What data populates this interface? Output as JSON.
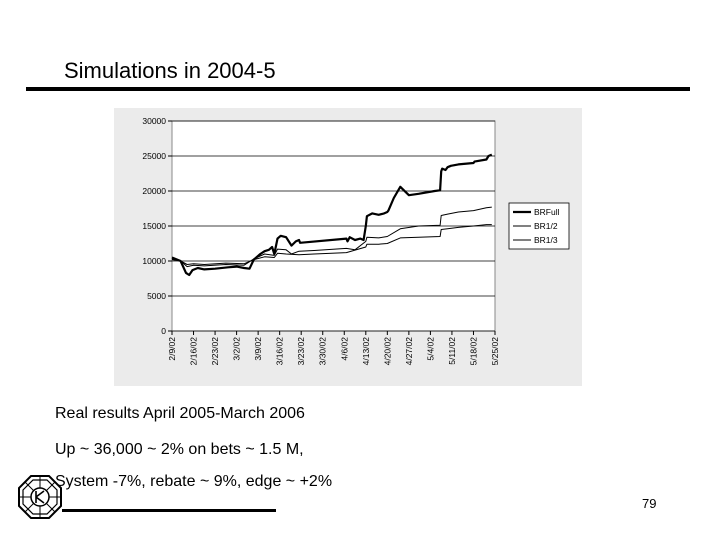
{
  "slide": {
    "title": "Simulations in 2004-5",
    "bullets": [
      "Real results April 2005-March 2006",
      "Up ~ 36,000 ~ 2% on bets ~ 1.5 M,",
      "System -7%, rebate ~ 9%, edge ~ +2%"
    ],
    "page_number": "79"
  },
  "logo_icon": "octagon-emblem-icon",
  "chart_data": {
    "type": "line",
    "title": "",
    "xlabel": "",
    "ylabel": "",
    "ylim": [
      0,
      30000
    ],
    "yticks": [
      "0",
      "5000",
      "10000",
      "15000",
      "20000",
      "25000",
      "30000"
    ],
    "xlim": [
      0,
      15
    ],
    "xticks": [
      "2/9/02",
      "2/16/02",
      "2/23/02",
      "3/2/02",
      "3/9/02",
      "3/16/02",
      "3/23/02",
      "3/30/02",
      "4/6/02",
      "4/13/02",
      "4/20/02",
      "4/27/02",
      "5/4/02",
      "5/11/02",
      "5/18/02",
      "5/25/02"
    ],
    "grid": true,
    "legend_position": "right",
    "series": [
      {
        "name": "BRFull",
        "color": "#000000",
        "width": 2.2,
        "x": [
          0,
          0.4,
          0.65,
          0.8,
          0.95,
          1.2,
          1.5,
          2.0,
          2.6,
          3.0,
          3.35,
          3.6,
          3.8,
          4.1,
          4.3,
          4.5,
          4.65,
          4.75,
          4.9,
          5.05,
          5.3,
          5.55,
          5.75,
          5.9,
          5.95,
          8.1,
          8.15,
          8.25,
          8.5,
          8.75,
          8.9,
          9.0,
          9.05,
          9.3,
          9.6,
          9.85,
          10.0,
          10.05,
          10.3,
          10.6,
          11.0,
          11.45,
          12.2,
          12.45,
          12.5,
          12.55,
          12.7,
          12.8,
          12.95,
          13.3,
          14.0,
          14.05,
          14.6,
          14.7,
          14.85
        ],
        "y": [
          10500,
          10000,
          8300,
          8000,
          8700,
          9000,
          8800,
          8900,
          9100,
          9200,
          9000,
          8900,
          10200,
          11000,
          11400,
          11600,
          12000,
          11000,
          13200,
          13600,
          13400,
          12200,
          12800,
          13000,
          12600,
          13200,
          12800,
          13400,
          13000,
          13200,
          13000,
          15000,
          16400,
          16800,
          16600,
          16800,
          17000,
          17200,
          19000,
          20600,
          19400,
          19600,
          20000,
          20100,
          22800,
          23200,
          23000,
          23400,
          23600,
          23800,
          24000,
          24200,
          24500,
          25000,
          25200
        ]
      },
      {
        "name": "BR1/2",
        "color": "#000000",
        "width": 1,
        "x": [
          0,
          0.4,
          0.7,
          1.0,
          1.5,
          2.5,
          3.35,
          3.8,
          4.3,
          4.75,
          4.9,
          5.3,
          5.55,
          5.9,
          6.6,
          8.1,
          8.5,
          9.0,
          9.05,
          9.6,
          10.0,
          10.6,
          11.45,
          12.45,
          12.5,
          12.8,
          13.3,
          14.0,
          14.6,
          14.85
        ],
        "y": [
          10300,
          10000,
          9200,
          9400,
          9300,
          9500,
          9400,
          10300,
          11000,
          10800,
          11700,
          11600,
          11000,
          11400,
          11500,
          11800,
          11600,
          12800,
          13400,
          13300,
          13500,
          14600,
          15000,
          15100,
          16500,
          16700,
          17000,
          17200,
          17600,
          17700
        ]
      },
      {
        "name": "BR1/3",
        "color": "#000000",
        "width": 1,
        "x": [
          0,
          0.4,
          0.7,
          1.0,
          1.5,
          2.5,
          3.35,
          3.8,
          4.3,
          4.75,
          4.9,
          5.3,
          5.9,
          6.6,
          8.1,
          9.0,
          9.05,
          9.6,
          10.0,
          10.6,
          11.45,
          12.45,
          12.5,
          12.8,
          13.3,
          14.0,
          14.6,
          14.85
        ],
        "y": [
          10200,
          10000,
          9500,
          9600,
          9500,
          9700,
          9600,
          10200,
          10600,
          10500,
          11100,
          11000,
          10900,
          11000,
          11200,
          12000,
          12400,
          12400,
          12500,
          13300,
          13400,
          13500,
          14500,
          14600,
          14800,
          15000,
          15200,
          15200
        ]
      }
    ]
  }
}
